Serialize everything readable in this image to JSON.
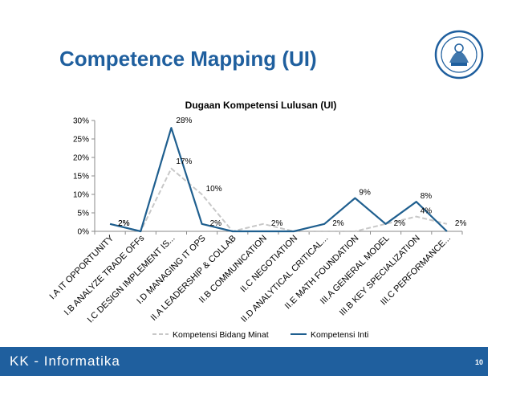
{
  "slide": {
    "title": "Competence Mapping (UI)",
    "footer": "KK - Informatika",
    "page_number": "10",
    "accent_color": "#1f5f9e"
  },
  "chart_data": {
    "type": "line",
    "title": "Dugaan Kompetensi Lulusan (UI)",
    "xlabel": "",
    "ylabel": "",
    "ylim": [
      0,
      30
    ],
    "y_ticks": [
      "0%",
      "5%",
      "10%",
      "15%",
      "20%",
      "25%",
      "30%"
    ],
    "grid": false,
    "legend": "bottom",
    "categories": [
      "I.A IT OPPORTUNITY",
      "I.B ANALYZE TRADE OFFs",
      "I.C DESIGN IMPLEMENT IS...",
      "I.D MANAGING IT OPS",
      "II.A LEADERSHIP & COLLAB",
      "II.B COMMUNICATION",
      "II.C NEGOTIATION",
      "II.D ANALYTICAL CRITICAL...",
      "II.E MATH FOUNDATION",
      "III.A GENERAL MODEL",
      "III.B KEY SPECIALIZATION",
      "III.C PERFORMANCE..."
    ],
    "series": [
      {
        "name": "Kompetensi Bidang Minat",
        "color": "#c8c8c8",
        "dashed": true,
        "values": [
          2,
          0,
          17,
          10,
          0,
          2,
          0,
          0,
          0,
          2,
          4,
          2
        ],
        "labels": [
          "2%",
          "",
          "17%",
          "10%",
          "",
          "2%",
          "",
          "",
          "",
          "",
          "4%",
          "2%"
        ]
      },
      {
        "name": "Kompetensi Inti",
        "color": "#1f5f8f",
        "dashed": false,
        "values": [
          2,
          0,
          28,
          2,
          0,
          0,
          0,
          2,
          9,
          2,
          8,
          0
        ],
        "labels": [
          "2%",
          "",
          "28%",
          "2%",
          "",
          "",
          "",
          "2%",
          "9%",
          "2%",
          "8%",
          ""
        ]
      }
    ]
  }
}
